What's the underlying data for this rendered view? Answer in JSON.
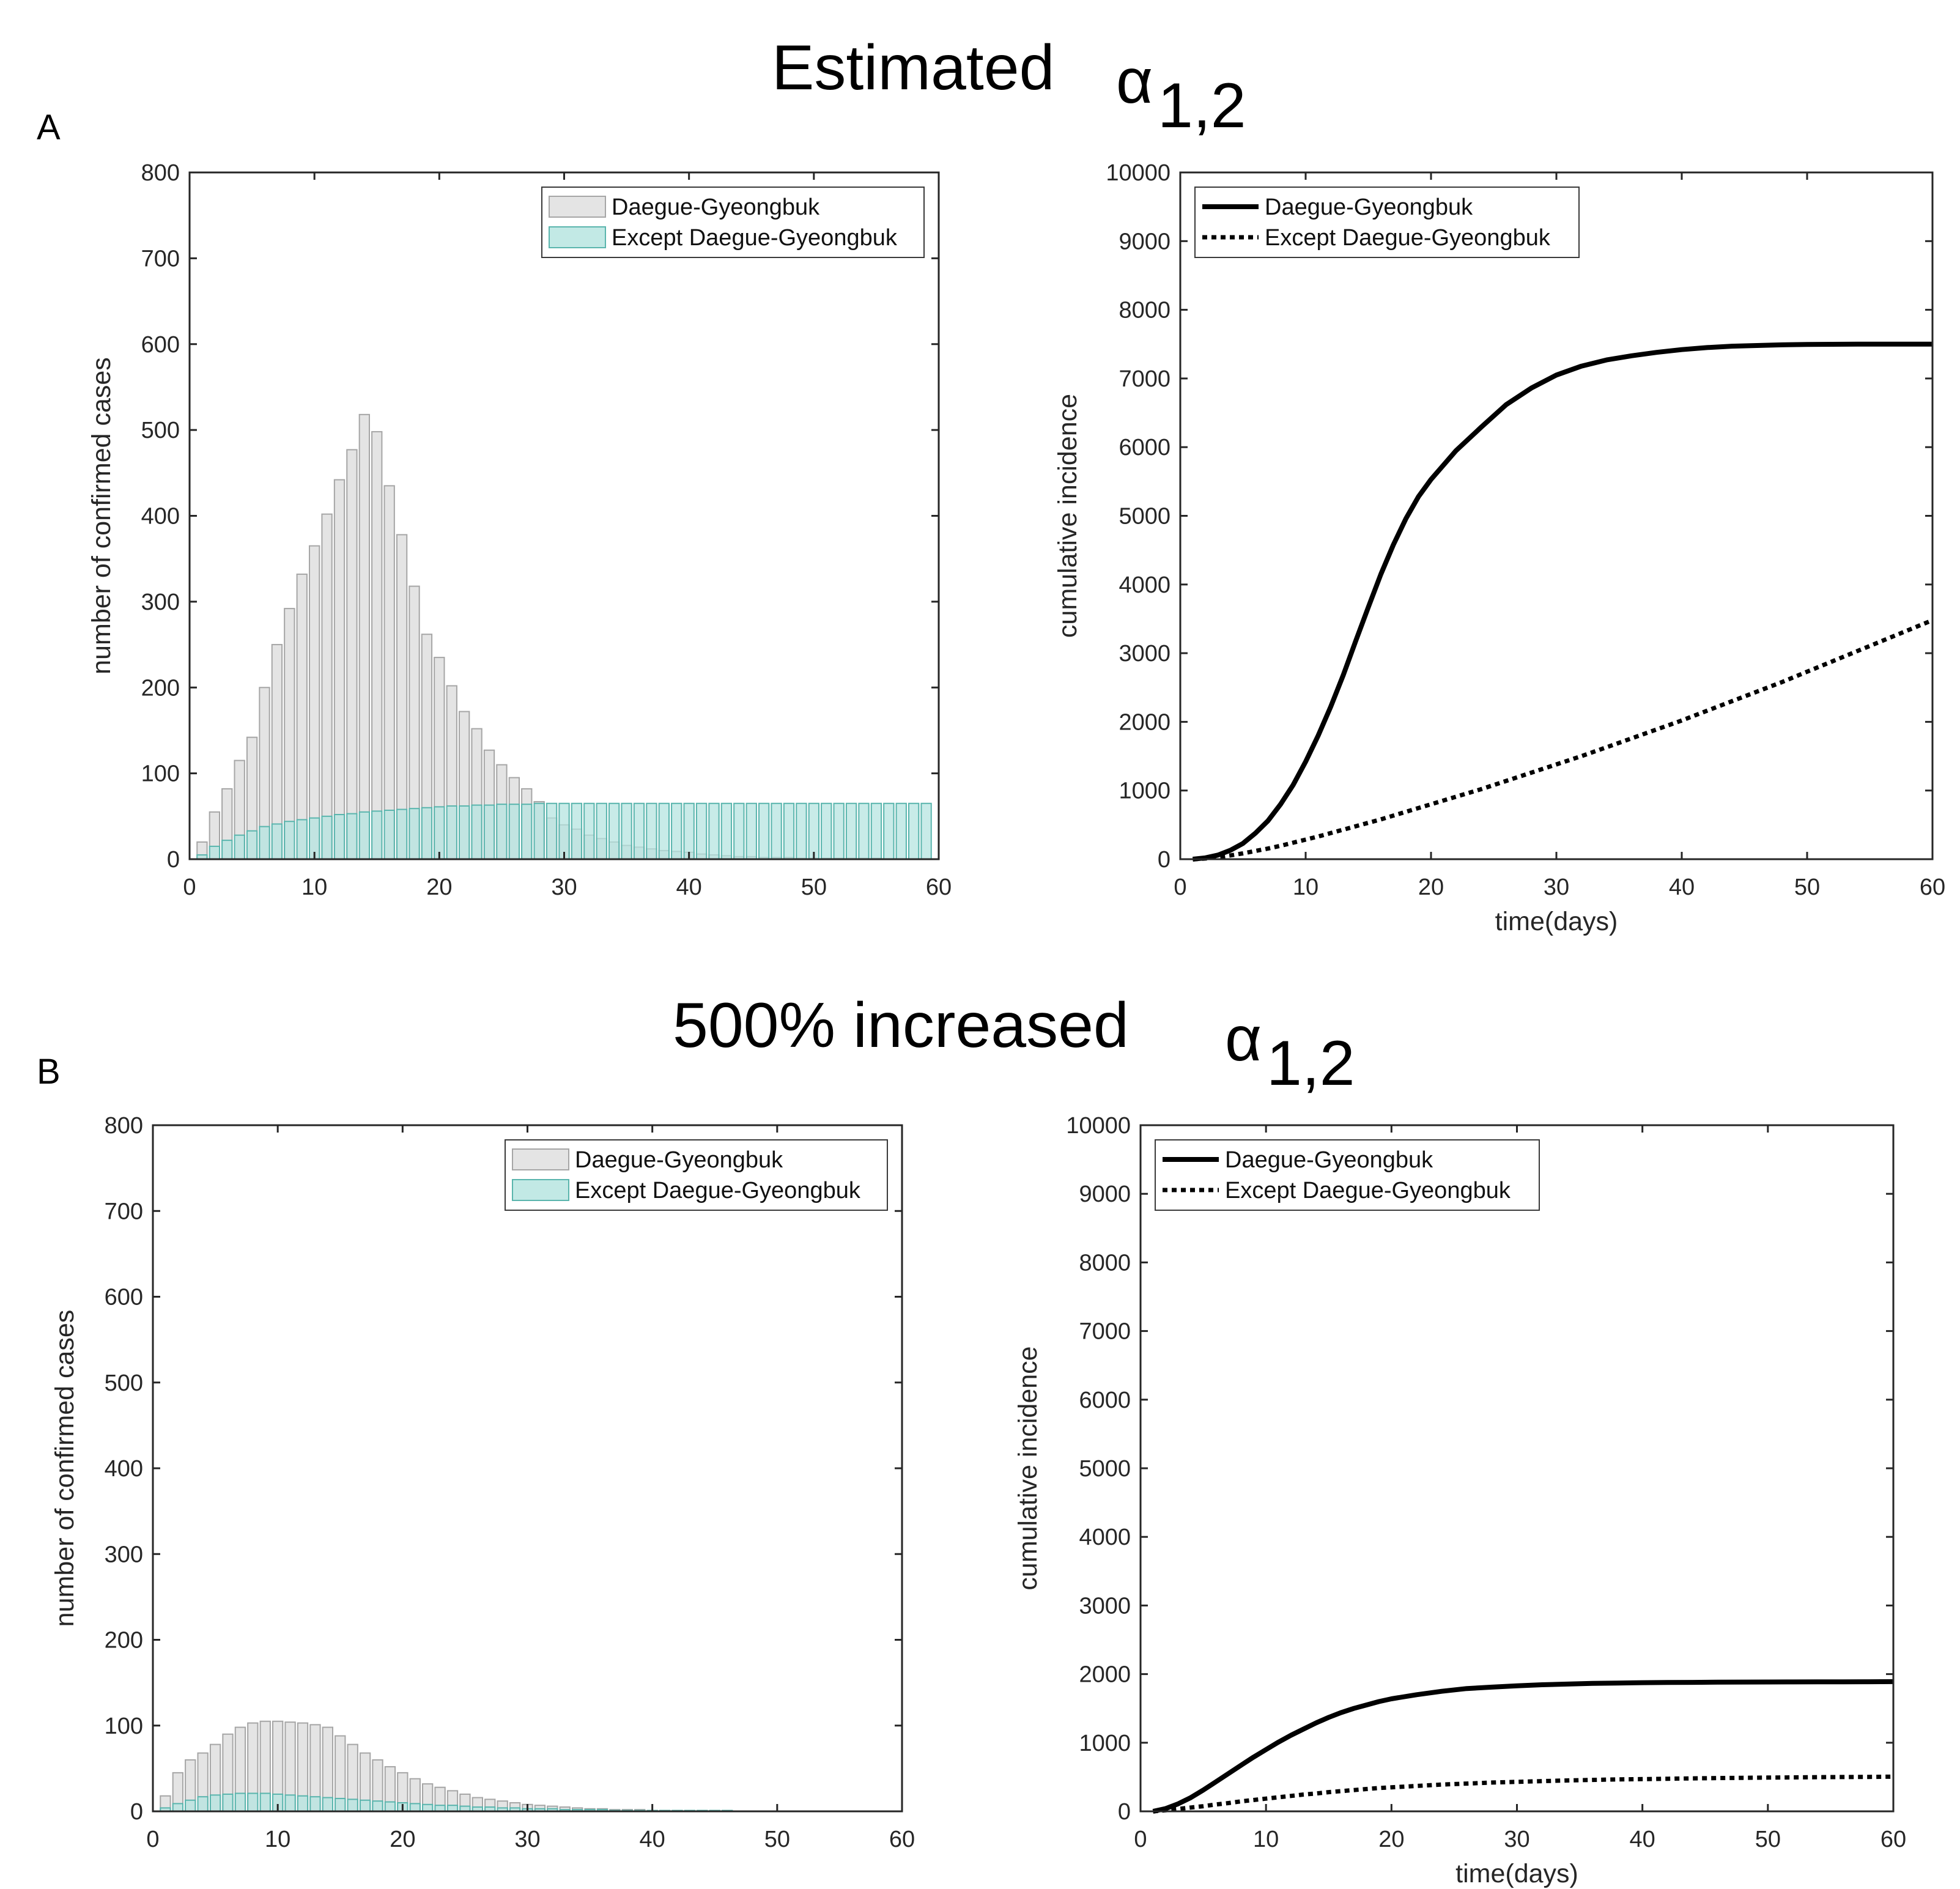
{
  "figure": {
    "rows": [
      {
        "label": "A",
        "title_text": "Estimated",
        "title_symbol": "α",
        "title_subscript": "1,2"
      },
      {
        "label": "B",
        "title_text": "500% increased",
        "title_symbol": "α",
        "title_subscript": "1,2"
      }
    ]
  },
  "colors": {
    "gray_fill": "#e4e4e4",
    "gray_edge": "#a6a6a6",
    "teal_fill": "#b3e3df",
    "teal_edge": "#5ab5ad",
    "line": "#000000",
    "axis": "#262626"
  },
  "chart_data": [
    {
      "id": "A-left",
      "type": "bar",
      "title": "",
      "xlabel": "",
      "ylabel": "number of confirmed cases",
      "xlim": [
        0,
        60
      ],
      "ylim": [
        0,
        800
      ],
      "xticks": [
        0,
        10,
        20,
        30,
        40,
        50,
        60
      ],
      "yticks": [
        0,
        100,
        200,
        300,
        400,
        500,
        600,
        700,
        800
      ],
      "legend": [
        "Daegue-Gyeongbuk",
        "Except Daegue-Gyeongbuk"
      ],
      "legend_position": "top-right",
      "x": [
        1,
        2,
        3,
        4,
        5,
        6,
        7,
        8,
        9,
        10,
        11,
        12,
        13,
        14,
        15,
        16,
        17,
        18,
        19,
        20,
        21,
        22,
        23,
        24,
        25,
        26,
        27,
        28,
        29,
        30,
        31,
        32,
        33,
        34,
        35,
        36,
        37,
        38,
        39,
        40,
        41,
        42,
        43,
        44,
        45,
        46,
        47,
        48,
        49,
        50,
        51,
        52,
        53,
        54,
        55,
        56,
        57,
        58,
        59
      ],
      "series": [
        {
          "name": "Daegue-Gyeongbuk",
          "values": [
            20,
            55,
            82,
            115,
            142,
            200,
            250,
            292,
            332,
            365,
            402,
            442,
            477,
            518,
            498,
            435,
            378,
            318,
            262,
            235,
            202,
            172,
            152,
            127,
            110,
            95,
            82,
            67,
            48,
            40,
            35,
            28,
            24,
            20,
            16,
            14,
            12,
            10,
            9,
            8,
            6,
            5,
            4,
            3,
            3,
            2,
            2,
            2,
            1,
            1,
            1,
            1,
            1,
            1,
            1,
            0,
            0,
            0,
            0
          ]
        },
        {
          "name": "Except Daegue-Gyeongbuk",
          "values": [
            5,
            15,
            22,
            28,
            33,
            38,
            41,
            44,
            46,
            48,
            50,
            52,
            53,
            55,
            56,
            57,
            58,
            59,
            60,
            61,
            62,
            62,
            63,
            63,
            64,
            64,
            64,
            65,
            65,
            65,
            65,
            65,
            65,
            65,
            65,
            65,
            65,
            65,
            65,
            65,
            65,
            65,
            65,
            65,
            65,
            65,
            65,
            65,
            65,
            65,
            65,
            65,
            65,
            65,
            65,
            65,
            65,
            65,
            65
          ]
        }
      ]
    },
    {
      "id": "A-right",
      "type": "line",
      "title": "",
      "xlabel": "time(days)",
      "ylabel": "cumulative incidence",
      "xlim": [
        0,
        60
      ],
      "ylim": [
        0,
        10000
      ],
      "xticks": [
        0,
        10,
        20,
        30,
        40,
        50,
        60
      ],
      "yticks": [
        0,
        1000,
        2000,
        3000,
        4000,
        5000,
        6000,
        7000,
        8000,
        9000,
        10000
      ],
      "legend": [
        "Daegue-Gyeongbuk",
        "Except Daegue-Gyeongbuk"
      ],
      "legend_position": "top-left",
      "x": [
        1,
        2,
        3,
        4,
        5,
        6,
        7,
        8,
        9,
        10,
        11,
        12,
        13,
        14,
        15,
        16,
        17,
        18,
        19,
        20,
        22,
        24,
        26,
        28,
        30,
        32,
        34,
        36,
        38,
        40,
        42,
        44,
        46,
        48,
        50,
        52,
        54,
        56,
        58,
        60
      ],
      "series": [
        {
          "name": "Daegue-Gyeongbuk",
          "style": "solid",
          "values": [
            0,
            20,
            60,
            130,
            230,
            380,
            560,
            800,
            1080,
            1420,
            1800,
            2220,
            2680,
            3180,
            3670,
            4150,
            4580,
            4960,
            5280,
            5530,
            5950,
            6290,
            6620,
            6860,
            7050,
            7180,
            7270,
            7330,
            7380,
            7420,
            7450,
            7470,
            7480,
            7490,
            7495,
            7498,
            7500,
            7500,
            7500,
            7500
          ]
        },
        {
          "name": "Except Daegue-Gyeongbuk",
          "style": "dotted",
          "values": [
            0,
            10,
            30,
            55,
            85,
            120,
            155,
            195,
            240,
            285,
            330,
            380,
            430,
            480,
            530,
            580,
            635,
            690,
            745,
            800,
            910,
            1020,
            1140,
            1260,
            1380,
            1500,
            1630,
            1760,
            1890,
            2020,
            2160,
            2300,
            2440,
            2580,
            2730,
            2880,
            3030,
            3180,
            3330,
            3480
          ]
        }
      ]
    },
    {
      "id": "B-left",
      "type": "bar",
      "title": "",
      "xlabel": "",
      "ylabel": "number of confirmed cases",
      "xlim": [
        0,
        60
      ],
      "ylim": [
        0,
        800
      ],
      "xticks": [
        0,
        10,
        20,
        30,
        40,
        50,
        60
      ],
      "yticks": [
        0,
        100,
        200,
        300,
        400,
        500,
        600,
        700,
        800
      ],
      "legend": [
        "Daegue-Gyeongbuk",
        "Except Daegue-Gyeongbuk"
      ],
      "legend_position": "top-right",
      "x": [
        1,
        2,
        3,
        4,
        5,
        6,
        7,
        8,
        9,
        10,
        11,
        12,
        13,
        14,
        15,
        16,
        17,
        18,
        19,
        20,
        21,
        22,
        23,
        24,
        25,
        26,
        27,
        28,
        29,
        30,
        31,
        32,
        33,
        34,
        35,
        36,
        37,
        38,
        39,
        40,
        41,
        42,
        43,
        44,
        45,
        46,
        47,
        48,
        49,
        50,
        51,
        52,
        53,
        54,
        55,
        56,
        57,
        58,
        59
      ],
      "series": [
        {
          "name": "Daegue-Gyeongbuk",
          "values": [
            18,
            45,
            60,
            68,
            78,
            90,
            98,
            103,
            105,
            105,
            104,
            103,
            101,
            98,
            88,
            78,
            68,
            60,
            52,
            45,
            38,
            32,
            28,
            24,
            20,
            16,
            14,
            12,
            10,
            8,
            7,
            6,
            5,
            4,
            3,
            3,
            2,
            2,
            2,
            1,
            1,
            1,
            1,
            1,
            1,
            1,
            0,
            0,
            0,
            0,
            0,
            0,
            0,
            0,
            0,
            0,
            0,
            0,
            0
          ]
        },
        {
          "name": "Except Daegue-Gyeongbuk",
          "values": [
            4,
            9,
            13,
            17,
            19,
            20,
            21,
            21,
            21,
            20,
            19,
            18,
            17,
            16,
            15,
            14,
            13,
            12,
            11,
            10,
            9,
            8,
            7,
            7,
            6,
            5,
            5,
            4,
            4,
            3,
            3,
            3,
            2,
            2,
            2,
            2,
            1,
            1,
            1,
            1,
            1,
            1,
            1,
            1,
            1,
            1,
            0,
            0,
            0,
            0,
            0,
            0,
            0,
            0,
            0,
            0,
            0,
            0,
            0
          ]
        }
      ]
    },
    {
      "id": "B-right",
      "type": "line",
      "title": "",
      "xlabel": "time(days)",
      "ylabel": "cumulative incidence",
      "xlim": [
        0,
        60
      ],
      "ylim": [
        0,
        10000
      ],
      "xticks": [
        0,
        10,
        20,
        30,
        40,
        50,
        60
      ],
      "yticks": [
        0,
        1000,
        2000,
        3000,
        4000,
        5000,
        6000,
        7000,
        8000,
        9000,
        10000
      ],
      "legend": [
        "Daegue-Gyeongbuk",
        "Except Daegue-Gyeongbuk"
      ],
      "legend_position": "top-left",
      "x": [
        1,
        2,
        3,
        4,
        5,
        6,
        7,
        8,
        9,
        10,
        11,
        12,
        13,
        14,
        15,
        16,
        17,
        18,
        19,
        20,
        22,
        24,
        26,
        28,
        30,
        32,
        34,
        36,
        38,
        40,
        42,
        44,
        46,
        48,
        50,
        52,
        54,
        56,
        58,
        60
      ],
      "series": [
        {
          "name": "Daegue-Gyeongbuk",
          "style": "solid",
          "values": [
            0,
            40,
            110,
            200,
            310,
            430,
            550,
            670,
            790,
            900,
            1010,
            1110,
            1200,
            1290,
            1370,
            1440,
            1500,
            1550,
            1600,
            1640,
            1700,
            1750,
            1790,
            1810,
            1830,
            1845,
            1855,
            1865,
            1870,
            1875,
            1878,
            1880,
            1882,
            1884,
            1885,
            1886,
            1887,
            1888,
            1889,
            1890
          ]
        },
        {
          "name": "Except Daegue-Gyeongbuk",
          "style": "dotted",
          "values": [
            0,
            15,
            35,
            55,
            75,
            100,
            120,
            145,
            165,
            185,
            205,
            225,
            245,
            260,
            280,
            295,
            310,
            325,
            340,
            350,
            370,
            390,
            405,
            420,
            430,
            440,
            450,
            458,
            465,
            470,
            475,
            480,
            485,
            488,
            492,
            495,
            498,
            500,
            502,
            505
          ]
        }
      ]
    }
  ]
}
